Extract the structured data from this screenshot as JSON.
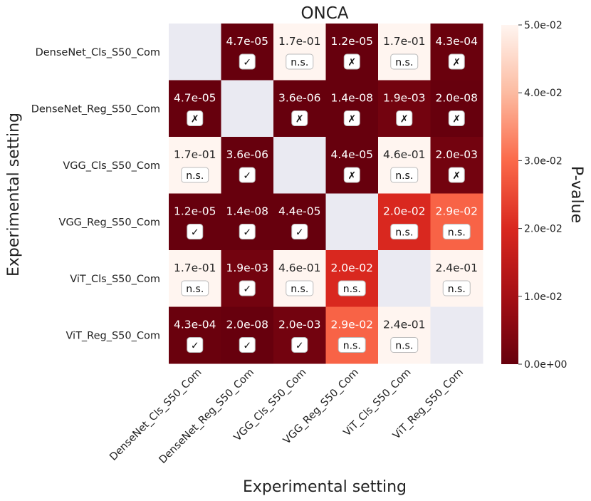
{
  "chart_data": {
    "type": "heatmap",
    "title": "ONCA",
    "xlabel": "Experimental setting",
    "ylabel": "Experimental setting",
    "colorbar_label": "P-value",
    "colorbar_ticks": [
      "0.0e+00",
      "1.0e-02",
      "2.0e-02",
      "3.0e-02",
      "4.0e-02",
      "5.0e-02"
    ],
    "colorbar_range": [
      0,
      0.05
    ],
    "colors": {
      "low": "#67000d",
      "mid": "#ef3b2c",
      "high": "#fff5f0",
      "diagonal": "#eaeaf2"
    },
    "rows": [
      "DenseNet_Cls_S50_Com",
      "DenseNet_Reg_S50_Com",
      "VGG_Cls_S50_Com",
      "VGG_Reg_S50_Com",
      "ViT_Cls_S50_Com",
      "ViT_Reg_S50_Com"
    ],
    "columns": [
      "DenseNet_Cls_S50_Com",
      "DenseNet_Reg_S50_Com",
      "VGG_Cls_S50_Com",
      "VGG_Reg_S50_Com",
      "ViT_Cls_S50_Com",
      "ViT_Reg_S50_Com"
    ],
    "values": [
      [
        null,
        4.7e-05,
        0.17,
        1.2e-05,
        0.17,
        0.00043
      ],
      [
        4.7e-05,
        null,
        3.6e-06,
        1.4e-08,
        0.0019,
        2e-08
      ],
      [
        0.17,
        3.6e-06,
        null,
        4.4e-05,
        0.46,
        0.002
      ],
      [
        1.2e-05,
        1.4e-08,
        4.4e-05,
        null,
        0.02,
        0.029
      ],
      [
        0.17,
        0.0019,
        0.46,
        0.02,
        null,
        0.24
      ],
      [
        0.00043,
        2e-08,
        0.002,
        0.029,
        0.24,
        null
      ]
    ],
    "labels": [
      [
        "",
        "4.7e-05",
        "1.7e-01",
        "1.2e-05",
        "1.7e-01",
        "4.3e-04"
      ],
      [
        "4.7e-05",
        "",
        "3.6e-06",
        "1.4e-08",
        "1.9e-03",
        "2.0e-08"
      ],
      [
        "1.7e-01",
        "3.6e-06",
        "",
        "4.4e-05",
        "4.6e-01",
        "2.0e-03"
      ],
      [
        "1.2e-05",
        "1.4e-08",
        "4.4e-05",
        "",
        "2.0e-02",
        "2.9e-02"
      ],
      [
        "1.7e-01",
        "1.9e-03",
        "4.6e-01",
        "2.0e-02",
        "",
        "2.4e-01"
      ],
      [
        "4.3e-04",
        "2.0e-08",
        "2.0e-03",
        "2.9e-02",
        "2.4e-01",
        ""
      ]
    ],
    "badges": [
      [
        "",
        "✓",
        "n.s.",
        "✗",
        "n.s.",
        "✗"
      ],
      [
        "✗",
        "",
        "✗",
        "✗",
        "✗",
        "✗"
      ],
      [
        "n.s.",
        "✓",
        "",
        "✗",
        "n.s.",
        "✗"
      ],
      [
        "✓",
        "✓",
        "✓",
        "",
        "n.s.",
        "n.s."
      ],
      [
        "n.s.",
        "✓",
        "n.s.",
        "n.s.",
        "",
        "n.s."
      ],
      [
        "✓",
        "✓",
        "✓",
        "n.s.",
        "n.s.",
        ""
      ]
    ]
  }
}
